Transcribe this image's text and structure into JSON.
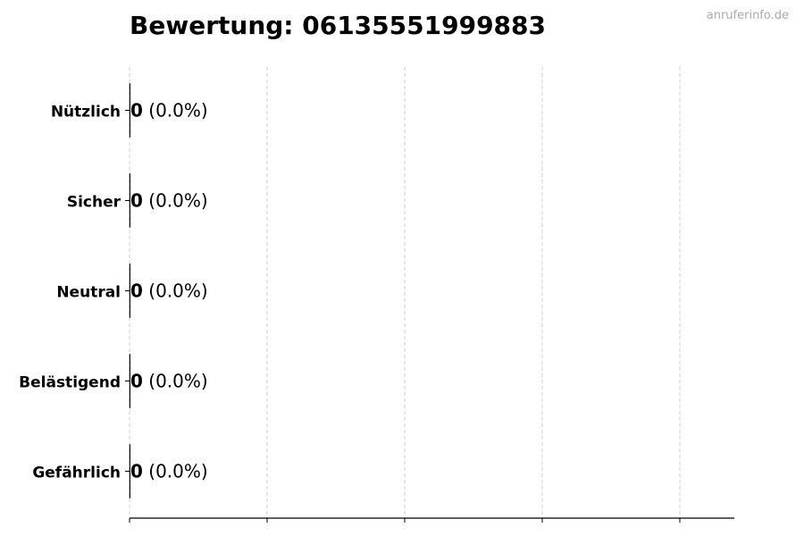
{
  "watermark": "anruferinfo.de",
  "chart_data": {
    "type": "bar",
    "orientation": "horizontal",
    "title": "Bewertung: 06135551999883",
    "categories": [
      "Nützlich",
      "Sicher",
      "Neutral",
      "Belästigend",
      "Gefährlich"
    ],
    "values": [
      0,
      0,
      0,
      0,
      0
    ],
    "labels": [
      {
        "count": "0",
        "percent": "(0.0%)"
      },
      {
        "count": "0",
        "percent": "(0.0%)"
      },
      {
        "count": "0",
        "percent": "(0.0%)"
      },
      {
        "count": "0",
        "percent": "(0.0%)"
      },
      {
        "count": "0",
        "percent": "(0.0%)"
      }
    ],
    "xlabel": "",
    "ylabel": "",
    "xticks_count": 5,
    "grid": "x dashed",
    "colors": {
      "bar_edge": "#000000",
      "grid": "#cccccc"
    }
  }
}
